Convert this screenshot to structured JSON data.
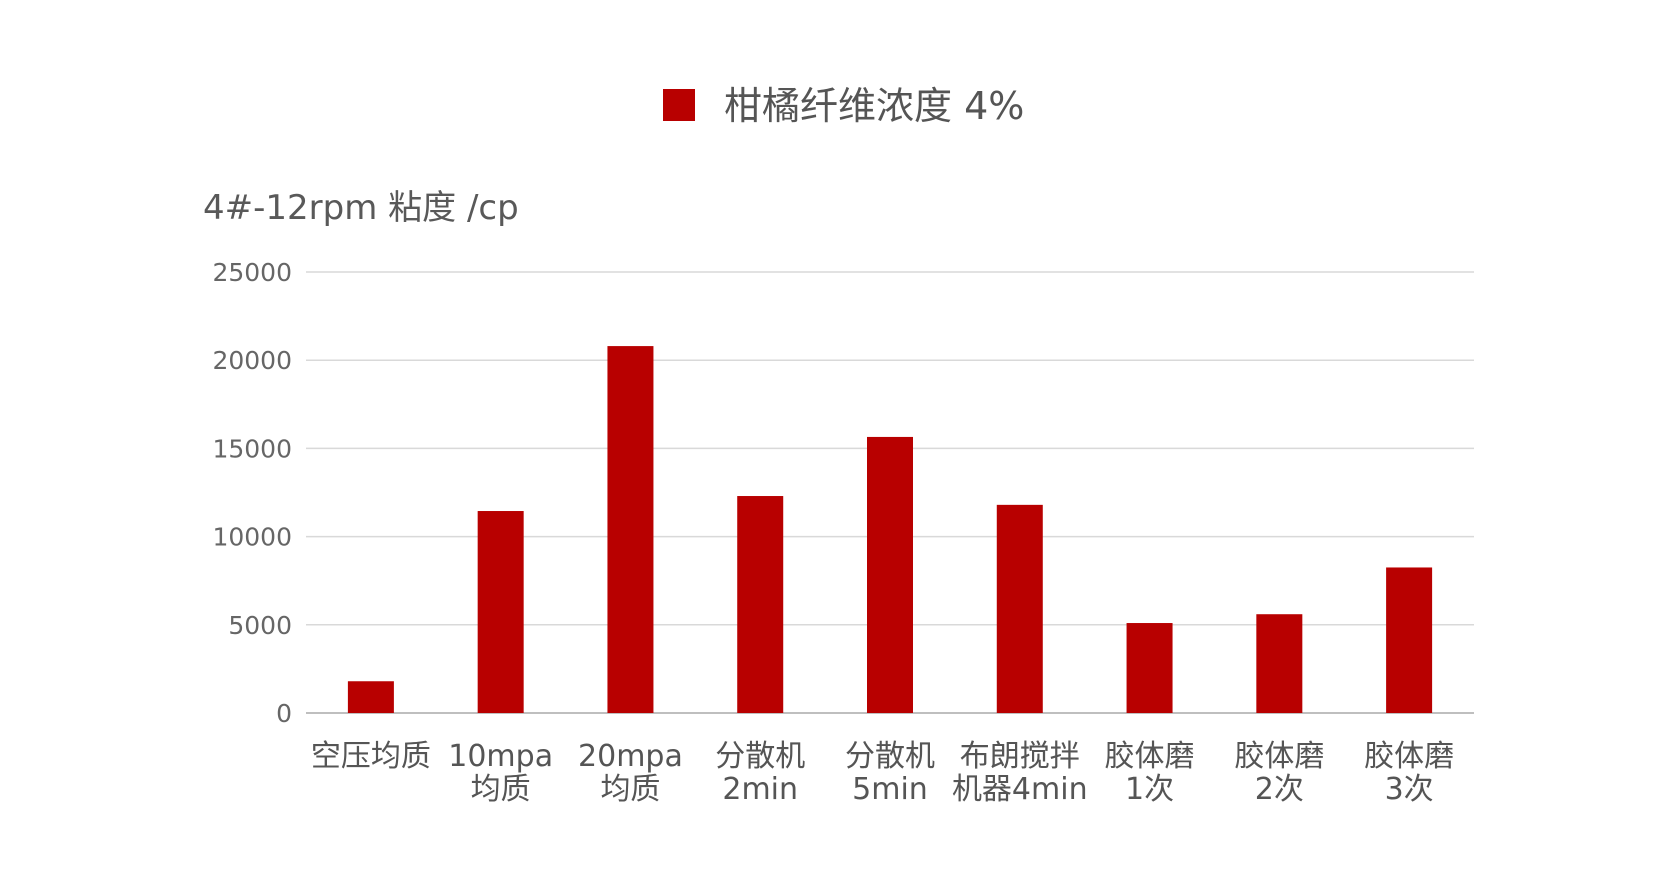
{
  "chart_data": {
    "type": "bar",
    "legend": {
      "position": "top",
      "entries": [
        "柑橘纤维浓度 4%"
      ]
    },
    "ylabel": "4#-12rpm 粘度 /cp",
    "xlabel": "",
    "ylim": [
      0,
      25000
    ],
    "yticks": [
      0,
      5000,
      10000,
      15000,
      20000,
      25000
    ],
    "grid": true,
    "categories": [
      [
        "空压均质"
      ],
      [
        "10mpa",
        "均质"
      ],
      [
        "20mpa",
        "均质"
      ],
      [
        "分散机",
        "2min"
      ],
      [
        "分散机",
        "5min"
      ],
      [
        "布朗搅拌",
        "机器4min"
      ],
      [
        "胶体磨",
        "1次"
      ],
      [
        "胶体磨",
        "2次"
      ],
      [
        "胶体磨",
        "3次"
      ]
    ],
    "series": [
      {
        "name": "柑橘纤维浓度 4%",
        "color": "#B80000",
        "values": [
          1800,
          11450,
          20800,
          12300,
          15650,
          11800,
          5100,
          5600,
          8250
        ]
      }
    ]
  }
}
